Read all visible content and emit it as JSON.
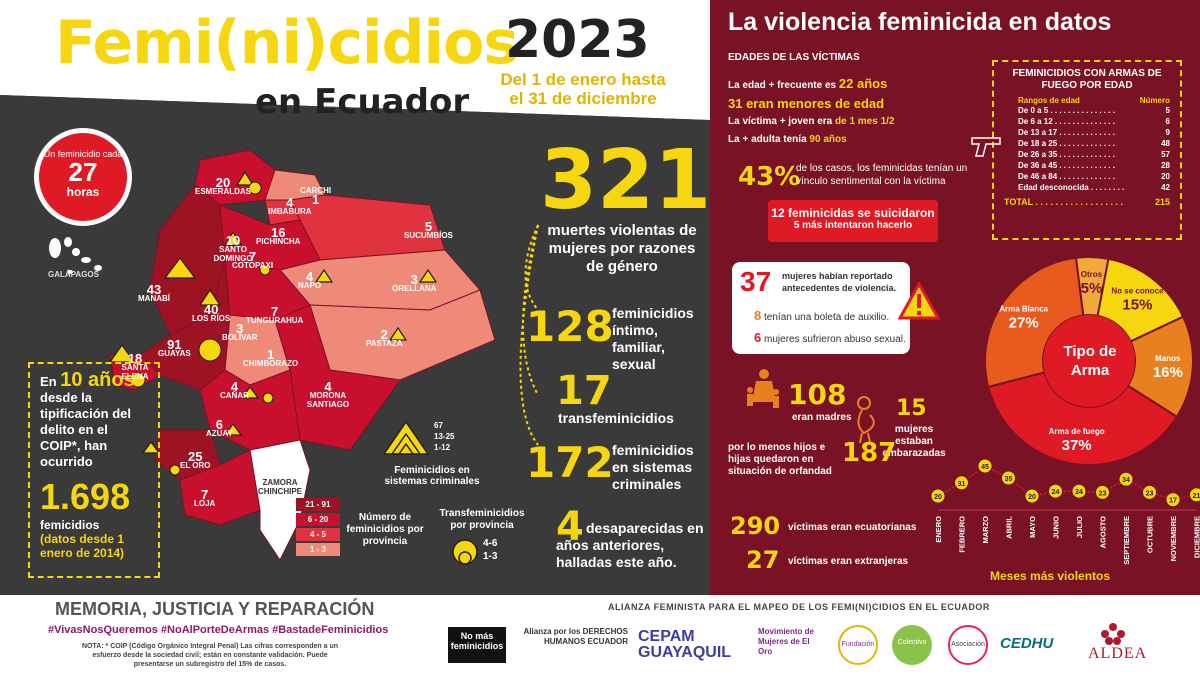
{
  "header": {
    "title": "Femi(ni)cidios",
    "subtitle": "en Ecuador",
    "year": "2023",
    "period": "Del 1 de enero hasta el 31 de diciembre"
  },
  "clock": {
    "line1": "Un feminicidio cada",
    "number": "27",
    "unit": "horas"
  },
  "map": {
    "galapagos_label": "GALÁPAGOS",
    "provinces": [
      {
        "name": "ESMERALDAS",
        "value": "20"
      },
      {
        "name": "CARCHI",
        "value": "1"
      },
      {
        "name": "IMBABURA",
        "value": "4"
      },
      {
        "name": "SUCUMBÍOS",
        "value": "5"
      },
      {
        "name": "PICHINCHA",
        "value": "16"
      },
      {
        "name": "SANTO DOMINGO",
        "value": "10"
      },
      {
        "name": "COTOPAXI",
        "value": "7"
      },
      {
        "name": "NAPO",
        "value": "4"
      },
      {
        "name": "ORELLANA",
        "value": "3"
      },
      {
        "name": "MANABÍ",
        "value": "43"
      },
      {
        "name": "LOS RÍOS",
        "value": "40"
      },
      {
        "name": "TUNGURAHUA",
        "value": "7"
      },
      {
        "name": "BOLÍVAR",
        "value": "3"
      },
      {
        "name": "PASTAZA",
        "value": "2"
      },
      {
        "name": "GUAYAS",
        "value": "91"
      },
      {
        "name": "SANTA ELENA",
        "value": "18"
      },
      {
        "name": "CHIMBORAZO",
        "value": "1"
      },
      {
        "name": "CAÑAR",
        "value": "4"
      },
      {
        "name": "MORONA SANTIAGO",
        "value": "4"
      },
      {
        "name": "AZUAY",
        "value": "6"
      },
      {
        "name": "EL ORO",
        "value": "25"
      },
      {
        "name": "LOJA",
        "value": "7"
      },
      {
        "name": "ZAMORA CHINCHIPE",
        "value": ""
      }
    ]
  },
  "decade_box": {
    "line1": "En",
    "years": "10 años",
    "line2": "desde la tipificación del delito en el COIP*, han ocurrido",
    "total": "1.698",
    "line3": "femicidios",
    "line4": "(datos desde 1 enero de 2014)"
  },
  "legend_triangles": {
    "ranges": [
      "67",
      "13-25",
      "1-12"
    ],
    "caption": "Feminicidios en sistemas criminales"
  },
  "legend_colors": {
    "ranges": [
      "21 - 91",
      "6 - 20",
      "4 - 5",
      "1 - 3"
    ],
    "colors": [
      "#9e1324",
      "#c8102e",
      "#e0323f",
      "#ef8a78"
    ],
    "caption": "Número de feminicidios por provincia"
  },
  "legend_circles": {
    "title": "Transfeminicidios por provincia",
    "ranges": [
      "4-6",
      "1-3"
    ]
  },
  "stats": {
    "total": "321",
    "total_text": "muertes violentas de mujeres por razones de género",
    "intimo": "128",
    "intimo_text": "feminicidios íntimo, familiar, sexual",
    "trans": "17",
    "trans_text": "transfeminicidios",
    "criminal": "172",
    "criminal_text": "feminicidios en sistemas criminales",
    "desap": "4",
    "desap_text": "desaparecidas en años anteriores, halladas este año."
  },
  "right": {
    "title": "La violencia feminicida en datos",
    "ages_title": "EDADES DE LAS VÍCTIMAS",
    "age1_pre": "La edad + frecuente es",
    "age1_val": "22 años",
    "age2": "31 eran menores de edad",
    "age3_pre": "La víctima + joven era",
    "age3_val": "de 1 mes 1/2",
    "age4_pre": "La + adulta tenía",
    "age4_val": "90 años",
    "pct43": "43%",
    "pct43_text": "de los casos, los feminicidas tenían un vínculo sentimental con la víctima",
    "suicide1": "12 feminicidas se suicidaron",
    "suicide2": "5 más intentaron hacerlo",
    "prev_num": "37",
    "prev_text": "mujeres habían reportado antecedentes de violencia.",
    "prev_8": "8",
    "prev_8_text": "tenían una boleta de auxilio.",
    "prev_6": "6",
    "prev_6_text": "mujeres sufrieron abuso sexual.",
    "madres_num": "108",
    "madres_text": "eran madres",
    "emb_num": "15",
    "emb_text": "mujeres estaban embarazadas",
    "orf_text": "por lo menos hijos e hijas quedaron en situación de orfandad",
    "orf_num": "187",
    "ecu_num": "290",
    "ecu_text": "víctimas eran ecuatorianas",
    "ext_num": "27",
    "ext_text": "víctimas eran extranjeras"
  },
  "arms_table": {
    "title": "FEMINICIDIOS CON ARMAS DE FUEGO POR EDAD",
    "col1": "Rangos de edad",
    "col2": "Número",
    "rows": [
      {
        "range": "De 0 a 5 . . . . . . . . . . . . . . .",
        "n": "5"
      },
      {
        "range": "De 6 a 12 . . . . . . . . . . . . . .",
        "n": "6"
      },
      {
        "range": "De 13 a 17 . . . . . . . . . . . . .",
        "n": "9"
      },
      {
        "range": "De 18 a 25 . . . . . . . . . . . . .",
        "n": "48"
      },
      {
        "range": "De 26 a 35 . . . . . . . . . . . . .",
        "n": "57"
      },
      {
        "range": "De 36 a 45 . . . . . . . . . . . . .",
        "n": "28"
      },
      {
        "range": "De 46 a 84 . . . . . . . . . . . . .",
        "n": "20"
      },
      {
        "range": "Edad desconocida . . . . . . . .",
        "n": "42"
      }
    ],
    "total_label": "TOTAL . . . . . . . . . . . . . . . . . .",
    "total": "215"
  },
  "chart_data": [
    {
      "type": "pie",
      "title": "Tipo de Arma",
      "categories": [
        "Otros",
        "No se conoce",
        "Manos",
        "Arma de fuego",
        "Arma Blanca"
      ],
      "values": [
        5,
        15,
        16,
        37,
        27
      ],
      "labels": [
        "5%",
        "15%",
        "16%",
        "37%",
        "27%"
      ],
      "colors": [
        "#f2a93b",
        "#f5d60f",
        "#e8801f",
        "#e01a24",
        "#e85a1e"
      ]
    },
    {
      "type": "line",
      "title": "Meses más violentos",
      "categories": [
        "ENERO",
        "FEBRERO",
        "MARZO",
        "ABRIL",
        "MAYO",
        "JUNIO",
        "JULIO",
        "AGOSTO",
        "SEPTIEMBRE",
        "OCTUBRE",
        "NOVIEMBRE",
        "DICIEMBRE"
      ],
      "values": [
        20,
        31,
        45,
        35,
        20,
        24,
        24,
        23,
        34,
        23,
        17,
        21
      ]
    }
  ],
  "footer": {
    "memoria": "MEMORIA, JUSTICIA Y REPARACIÓN",
    "tags": "#VivasNosQueremos  #NoAlPorteDeArmas  #BastadeFeminicidios",
    "nota": "NOTA: * COIP (Código Orgánico Integral Penal) Las cifras corresponden a un esfuerzo desde la sociedad civil; están en constante validación. Puede presentarse un subregistro del 15% de casos.",
    "alianza": "ALIANZA FEMINISTA PARA EL MAPEO DE LOS FEMI(NI)CIDIOS EN EL ECUADOR",
    "logos": [
      "No más feminicidios",
      "Alianza por los DERECHOS HUMANOS ECUADOR",
      "CEPAM GUAYAQUIL",
      "Movimiento de Mujeres de El Oro",
      "Fundación",
      "Colectivo",
      "Asociación",
      "CEDHU",
      "ALDEA"
    ]
  }
}
